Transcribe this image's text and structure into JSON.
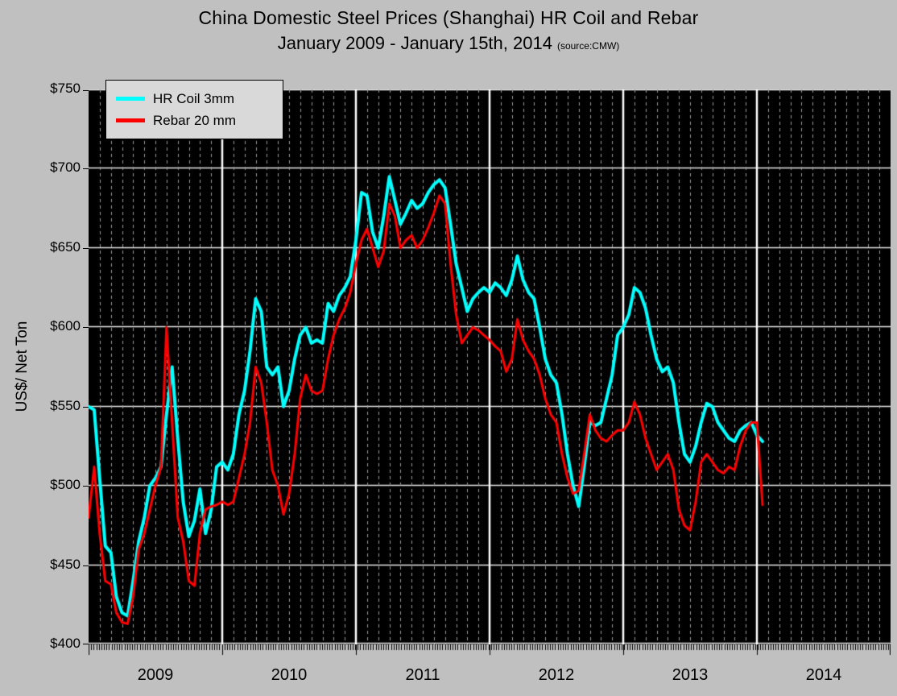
{
  "title": {
    "line1": "China Domestic Steel Prices (Shanghai) HR Coil and Rebar",
    "line2": "January 2009 - January 15th, 2014",
    "source": "(source:CMW)"
  },
  "legend": {
    "items": [
      {
        "label": "HR Coil 3mm",
        "color": "#00ffff"
      },
      {
        "label": "Rebar 20 mm",
        "color": "#ff0000"
      }
    ]
  },
  "chart_data": {
    "type": "line",
    "title": "China Domestic Steel Prices (Shanghai) HR Coil and Rebar, January 2009 - January 15th, 2014 (source:CMW)",
    "xlabel": "",
    "ylabel": "US$/ Net Ton",
    "xlim": [
      2009,
      2015
    ],
    "ylim": [
      400,
      750
    ],
    "yticks": [
      400,
      450,
      500,
      550,
      600,
      650,
      700,
      750
    ],
    "ytick_labels": [
      "$400",
      "$450",
      "$500",
      "$550",
      "$600",
      "$650",
      "$700",
      "$750"
    ],
    "xticks": [
      {
        "value": 2009.5,
        "label": "2009"
      },
      {
        "value": 2010.5,
        "label": "2010"
      },
      {
        "value": 2011.5,
        "label": "2011"
      },
      {
        "value": 2012.5,
        "label": "2012"
      },
      {
        "value": 2013.5,
        "label": "2013"
      },
      {
        "value": 2014.5,
        "label": "2014"
      }
    ],
    "year_lines": [
      2010,
      2011,
      2012,
      2013,
      2014
    ],
    "legend_position": "top-left",
    "grid": true,
    "style": {
      "plot_background": "#000000",
      "page_background": "#c0c0c0",
      "h_grid_color": "#e8e8e8",
      "minor_grid_color": "#9b9b9b",
      "year_line_color": "#ffffff"
    },
    "x": [
      2009.0,
      2009.042,
      2009.083,
      2009.125,
      2009.167,
      2009.208,
      2009.25,
      2009.292,
      2009.333,
      2009.375,
      2009.417,
      2009.458,
      2009.5,
      2009.542,
      2009.583,
      2009.625,
      2009.667,
      2009.708,
      2009.75,
      2009.792,
      2009.833,
      2009.875,
      2009.917,
      2009.958,
      2010.0,
      2010.042,
      2010.083,
      2010.125,
      2010.167,
      2010.208,
      2010.25,
      2010.292,
      2010.333,
      2010.375,
      2010.417,
      2010.458,
      2010.5,
      2010.542,
      2010.583,
      2010.625,
      2010.667,
      2010.708,
      2010.75,
      2010.792,
      2010.833,
      2010.875,
      2010.917,
      2010.958,
      2011.0,
      2011.042,
      2011.083,
      2011.125,
      2011.167,
      2011.208,
      2011.25,
      2011.292,
      2011.333,
      2011.375,
      2011.417,
      2011.458,
      2011.5,
      2011.542,
      2011.583,
      2011.625,
      2011.667,
      2011.708,
      2011.75,
      2011.792,
      2011.833,
      2011.875,
      2011.917,
      2011.958,
      2012.0,
      2012.042,
      2012.083,
      2012.125,
      2012.167,
      2012.208,
      2012.25,
      2012.292,
      2012.333,
      2012.375,
      2012.417,
      2012.458,
      2012.5,
      2012.542,
      2012.583,
      2012.625,
      2012.667,
      2012.708,
      2012.75,
      2012.792,
      2012.833,
      2012.875,
      2012.917,
      2012.958,
      2013.0,
      2013.042,
      2013.083,
      2013.125,
      2013.167,
      2013.208,
      2013.25,
      2013.292,
      2013.333,
      2013.375,
      2013.417,
      2013.458,
      2013.5,
      2013.542,
      2013.583,
      2013.625,
      2013.667,
      2013.708,
      2013.75,
      2013.792,
      2013.833,
      2013.875,
      2013.917,
      2013.958,
      2014.0,
      2014.042
    ],
    "series": [
      {
        "name": "HR Coil 3mm",
        "color": "#00ffff",
        "width": 4,
        "values": [
          550,
          548,
          505,
          462,
          458,
          430,
          420,
          418,
          440,
          465,
          480,
          500,
          505,
          512,
          545,
          575,
          530,
          490,
          468,
          478,
          498,
          470,
          485,
          512,
          515,
          510,
          520,
          545,
          560,
          585,
          618,
          610,
          575,
          570,
          575,
          550,
          560,
          580,
          595,
          600,
          590,
          592,
          590,
          615,
          610,
          620,
          625,
          632,
          655,
          685,
          683,
          660,
          650,
          670,
          695,
          680,
          665,
          672,
          680,
          675,
          678,
          685,
          690,
          693,
          688,
          665,
          640,
          625,
          610,
          618,
          622,
          625,
          622,
          628,
          625,
          620,
          630,
          645,
          630,
          622,
          618,
          600,
          580,
          570,
          565,
          545,
          520,
          500,
          487,
          512,
          540,
          538,
          540,
          555,
          570,
          595,
          600,
          608,
          625,
          622,
          612,
          595,
          580,
          572,
          575,
          565,
          540,
          520,
          515,
          525,
          540,
          552,
          550,
          540,
          535,
          530,
          528,
          535,
          538,
          540,
          532,
          528
        ]
      },
      {
        "name": "Rebar 20 mm",
        "color": "#ff0000",
        "width": 3,
        "values": [
          480,
          512,
          470,
          440,
          438,
          420,
          414,
          413,
          430,
          460,
          470,
          485,
          500,
          512,
          600,
          540,
          480,
          465,
          440,
          437,
          470,
          485,
          487,
          488,
          490,
          488,
          490,
          505,
          520,
          540,
          575,
          565,
          540,
          510,
          500,
          482,
          495,
          520,
          555,
          570,
          560,
          558,
          560,
          580,
          595,
          605,
          612,
          622,
          640,
          655,
          662,
          650,
          638,
          648,
          678,
          670,
          650,
          655,
          658,
          650,
          655,
          663,
          672,
          683,
          678,
          640,
          608,
          590,
          595,
          600,
          598,
          595,
          592,
          588,
          585,
          572,
          580,
          605,
          592,
          585,
          580,
          570,
          555,
          545,
          540,
          520,
          505,
          495,
          497,
          520,
          545,
          535,
          530,
          528,
          532,
          535,
          535,
          540,
          553,
          545,
          530,
          520,
          510,
          515,
          520,
          510,
          485,
          475,
          472,
          490,
          515,
          520,
          515,
          510,
          508,
          512,
          510,
          525,
          535,
          540,
          540,
          488
        ]
      }
    ]
  }
}
